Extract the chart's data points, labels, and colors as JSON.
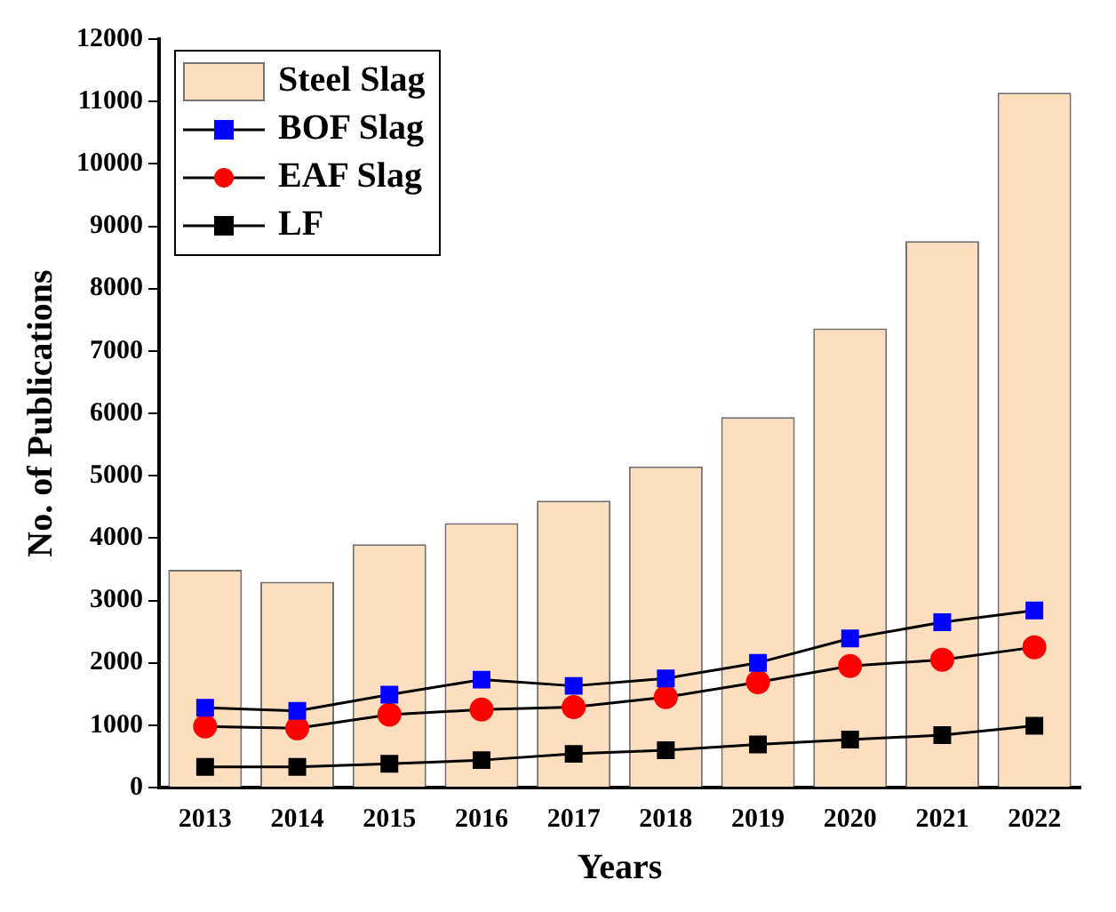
{
  "chart_data": {
    "type": "bar",
    "xlabel": "Years",
    "ylabel": "No. of Publications",
    "categories": [
      "2013",
      "2014",
      "2015",
      "2016",
      "2017",
      "2018",
      "2019",
      "2020",
      "2021",
      "2022"
    ],
    "series": [
      {
        "name": "Steel Slag",
        "color": "#fddfbf",
        "values": [
          3490,
          3300,
          3900,
          4240,
          4600,
          5150,
          5940,
          7360,
          8760,
          11140
        ]
      },
      {
        "name": "BOF Slag",
        "type": "line",
        "marker": "square",
        "color": "#0000ff",
        "values": [
          1280,
          1230,
          1490,
          1730,
          1630,
          1750,
          2000,
          2390,
          2650,
          2840
        ]
      },
      {
        "name": "EAF Slag",
        "type": "line",
        "marker": "circle",
        "color": "#ff0000",
        "values": [
          980,
          950,
          1170,
          1250,
          1290,
          1450,
          1690,
          1950,
          2050,
          2250
        ]
      },
      {
        "name": "LF",
        "type": "line",
        "marker": "square",
        "color": "#000000",
        "values": [
          330,
          330,
          380,
          440,
          540,
          600,
          690,
          770,
          840,
          990
        ]
      }
    ],
    "ylim": [
      0,
      12000
    ],
    "yticks": [
      0,
      1000,
      2000,
      3000,
      4000,
      5000,
      6000,
      7000,
      8000,
      9000,
      10000,
      11000,
      12000
    ],
    "grid": false,
    "legend": "top left"
  }
}
